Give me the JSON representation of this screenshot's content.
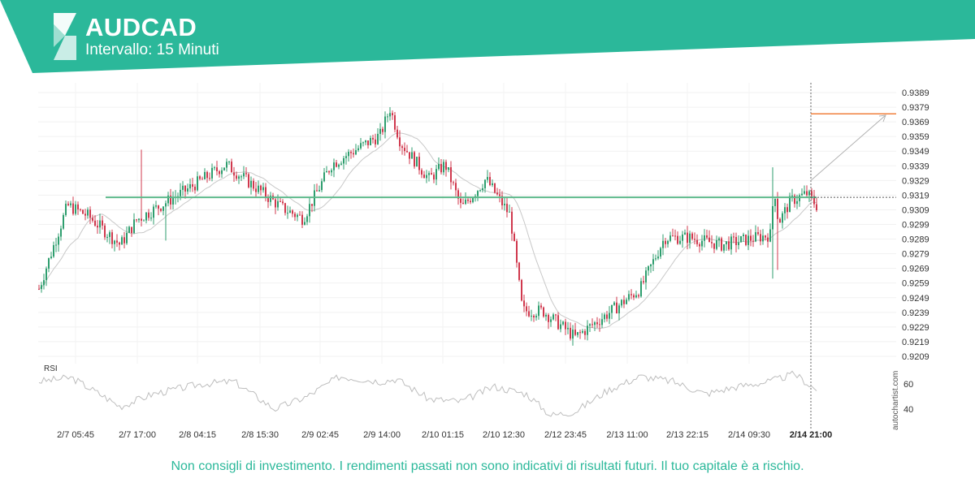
{
  "header": {
    "title": "AUDCAD",
    "subtitle": "Intervallo: 15 Minuti",
    "brand_color": "#2bb89a",
    "logo_icon": "autochartist-logo-icon"
  },
  "chart_data": {
    "type": "candlestick",
    "symbol": "AUDCAD",
    "ylim": [
      0.9204,
      0.9394
    ],
    "y_ticks": [
      "0.9389",
      "0.9379",
      "0.9369",
      "0.9359",
      "0.9349",
      "0.9339",
      "0.9329",
      "0.9319",
      "0.9309",
      "0.9299",
      "0.9289",
      "0.9279",
      "0.9269",
      "0.9259",
      "0.9249",
      "0.9239",
      "0.9229",
      "0.9219",
      "0.9209"
    ],
    "x_ticks": [
      "2/7 05:45",
      "2/7 17:00",
      "2/8 04:15",
      "2/8 15:30",
      "2/9 02:45",
      "2/9 14:00",
      "2/10 01:15",
      "2/10 12:30",
      "2/12 23:45",
      "2/13 11:00",
      "2/13 22:15",
      "2/14 09:30",
      "2/14 21:00"
    ],
    "highlighted_x_tick": "2/14 21:00",
    "price_path": [
      {
        "t": 0,
        "p": 0.9255
      },
      {
        "t": 35,
        "p": 0.9312
      },
      {
        "t": 60,
        "p": 0.9305
      },
      {
        "t": 100,
        "p": 0.9285
      },
      {
        "t": 120,
        "p": 0.9302
      },
      {
        "t": 180,
        "p": 0.9322
      },
      {
        "t": 230,
        "p": 0.934
      },
      {
        "t": 300,
        "p": 0.931
      },
      {
        "t": 325,
        "p": 0.9303
      },
      {
        "t": 360,
        "p": 0.934
      },
      {
        "t": 420,
        "p": 0.936
      },
      {
        "t": 432,
        "p": 0.9378
      },
      {
        "t": 445,
        "p": 0.9355
      },
      {
        "t": 480,
        "p": 0.933
      },
      {
        "t": 500,
        "p": 0.934
      },
      {
        "t": 520,
        "p": 0.931
      },
      {
        "t": 550,
        "p": 0.933
      },
      {
        "t": 580,
        "p": 0.9305
      },
      {
        "t": 595,
        "p": 0.924
      },
      {
        "t": 620,
        "p": 0.924
      },
      {
        "t": 660,
        "p": 0.9222
      },
      {
        "t": 700,
        "p": 0.9238
      },
      {
        "t": 740,
        "p": 0.9255
      },
      {
        "t": 770,
        "p": 0.929
      },
      {
        "t": 800,
        "p": 0.929
      },
      {
        "t": 840,
        "p": 0.9285
      },
      {
        "t": 900,
        "p": 0.9292
      },
      {
        "t": 905,
        "p": 0.9325
      },
      {
        "t": 910,
        "p": 0.93
      },
      {
        "t": 925,
        "p": 0.9315
      },
      {
        "t": 945,
        "p": 0.932
      },
      {
        "t": 957,
        "p": 0.9312
      }
    ],
    "support_line": {
      "price": 0.93175,
      "color": "#5cb88a"
    },
    "current_price": 0.93175,
    "target_line": {
      "price": 0.93745,
      "color": "#f0803c"
    },
    "forecast_arrow": {
      "from_price": 0.9329,
      "to_price": 0.93735,
      "color": "#b0b0b0"
    },
    "rsi": {
      "label": "RSI",
      "ticks": [
        "60",
        "40"
      ],
      "path": [
        {
          "t": 0,
          "v": 62
        },
        {
          "t": 40,
          "v": 65
        },
        {
          "t": 80,
          "v": 50
        },
        {
          "t": 100,
          "v": 42
        },
        {
          "t": 140,
          "v": 52
        },
        {
          "t": 200,
          "v": 60
        },
        {
          "t": 240,
          "v": 62
        },
        {
          "t": 290,
          "v": 40
        },
        {
          "t": 330,
          "v": 50
        },
        {
          "t": 370,
          "v": 66
        },
        {
          "t": 420,
          "v": 62
        },
        {
          "t": 440,
          "v": 64
        },
        {
          "t": 480,
          "v": 48
        },
        {
          "t": 520,
          "v": 46
        },
        {
          "t": 560,
          "v": 58
        },
        {
          "t": 600,
          "v": 52
        },
        {
          "t": 630,
          "v": 35
        },
        {
          "t": 660,
          "v": 38
        },
        {
          "t": 700,
          "v": 55
        },
        {
          "t": 740,
          "v": 66
        },
        {
          "t": 780,
          "v": 62
        },
        {
          "t": 820,
          "v": 52
        },
        {
          "t": 860,
          "v": 58
        },
        {
          "t": 900,
          "v": 62
        },
        {
          "t": 930,
          "v": 68
        },
        {
          "t": 957,
          "v": 55
        }
      ]
    }
  },
  "watermark": "autochartist.com",
  "disclaimer": "Non consigli di investimento. I rendimenti passati non sono indicativi di risultati futuri. Il tuo capitale è a rischio."
}
